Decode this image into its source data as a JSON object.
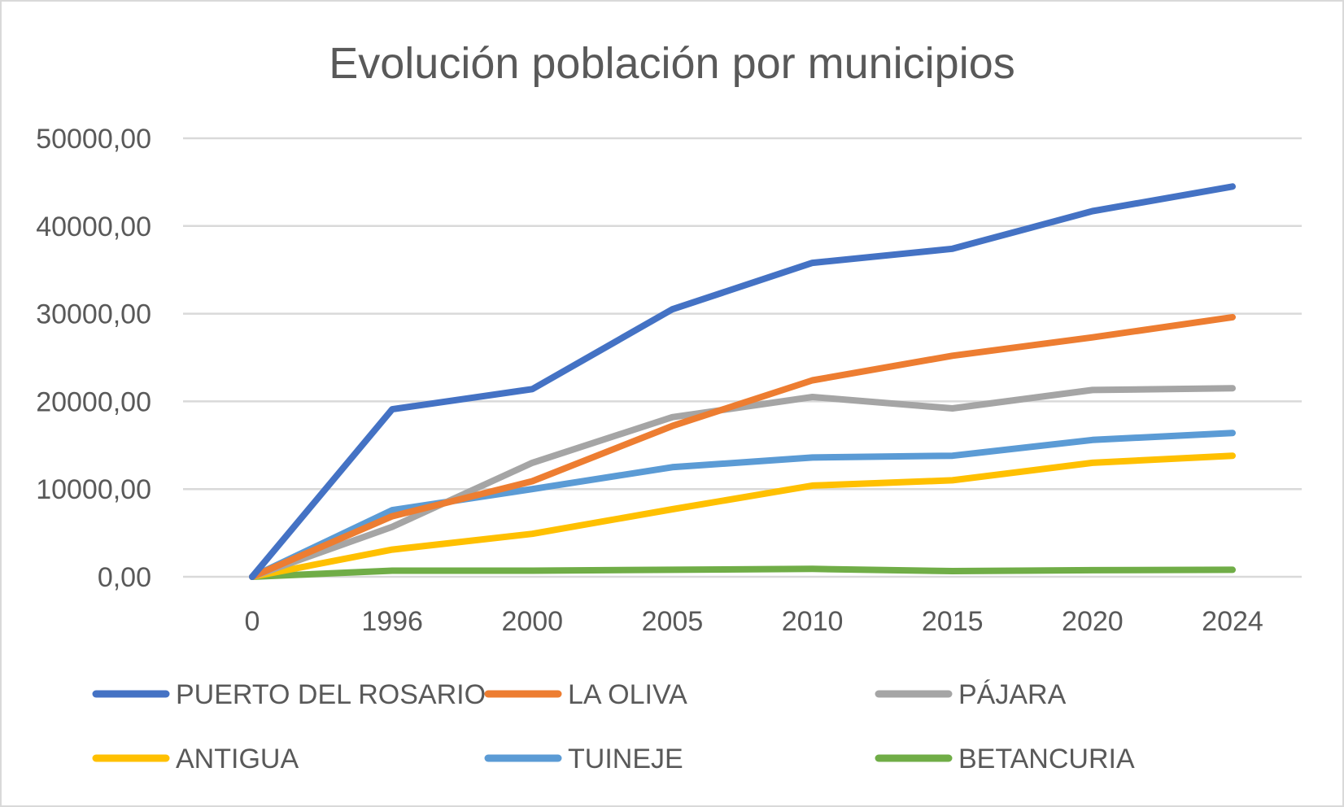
{
  "chart_data": {
    "type": "line",
    "title": "Evolución población por municipios",
    "xlabel": "",
    "ylabel": "",
    "categories": [
      "0",
      "1996",
      "2000",
      "2005",
      "2010",
      "2015",
      "2020",
      "2024"
    ],
    "ylim": [
      0,
      50000
    ],
    "yticks": [
      0,
      10000,
      20000,
      30000,
      40000,
      50000
    ],
    "ytick_labels": [
      "0,00",
      "10000,00",
      "20000,00",
      "30000,00",
      "40000,00",
      "50000,00"
    ],
    "grid": true,
    "legend_position": "bottom",
    "series": [
      {
        "name": "PUERTO DEL ROSARIO",
        "color": "#4472C4",
        "values": [
          0,
          19100,
          21400,
          30500,
          35800,
          37400,
          41700,
          44500
        ]
      },
      {
        "name": "LA OLIVA",
        "color": "#ED7D31",
        "values": [
          0,
          6900,
          10900,
          17200,
          22400,
          25200,
          27300,
          29600
        ]
      },
      {
        "name": "PÁJARA",
        "color": "#A5A5A5",
        "values": [
          0,
          5700,
          13000,
          18200,
          20500,
          19200,
          21300,
          21500
        ]
      },
      {
        "name": "ANTIGUA",
        "color": "#FFC000",
        "values": [
          0,
          3100,
          4900,
          7700,
          10400,
          11000,
          13000,
          13800
        ]
      },
      {
        "name": "TUINEJE",
        "color": "#5B9BD5",
        "values": [
          0,
          7600,
          10000,
          12500,
          13600,
          13800,
          15600,
          16400
        ]
      },
      {
        "name": "BETANCURIA",
        "color": "#70AD47",
        "values": [
          0,
          700,
          700,
          800,
          900,
          650,
          750,
          800
        ]
      }
    ]
  }
}
